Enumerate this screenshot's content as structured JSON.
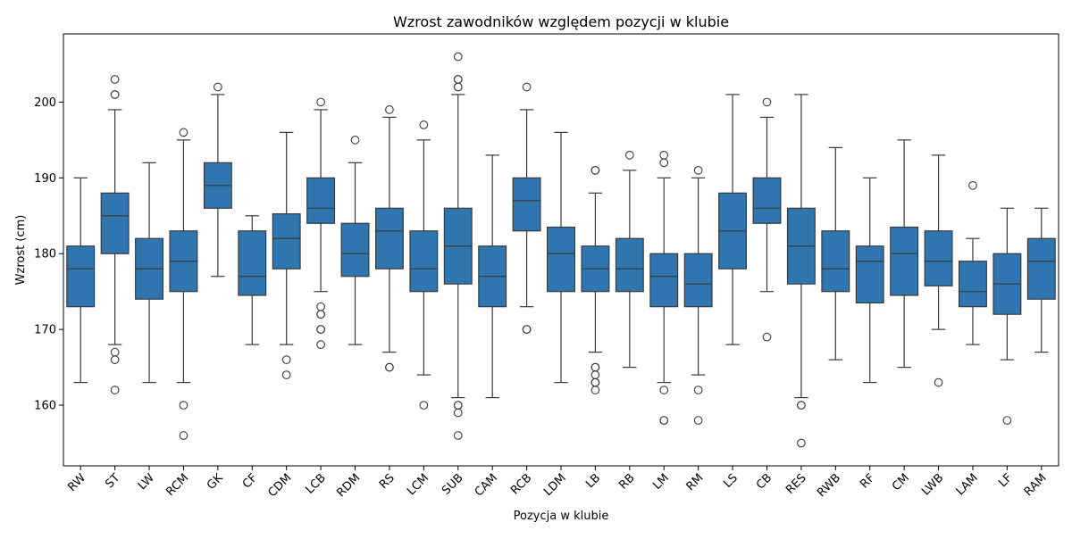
{
  "chart_data": {
    "type": "box",
    "title": "Wzrost zawodników  względem pozycji w klubie",
    "xlabel": "Pozycja w klubie",
    "ylabel": "Wzrost (cm)",
    "ylim": [
      152,
      209
    ],
    "yticks": [
      160,
      170,
      180,
      190,
      200
    ],
    "box_color": "#2f76b0",
    "line_color": "#3a3a3a",
    "categories": [
      "RW",
      "ST",
      "LW",
      "RCM",
      "GK",
      "CF",
      "CDM",
      "LCB",
      "RDM",
      "RS",
      "LCM",
      "SUB",
      "CAM",
      "RCB",
      "LDM",
      "LB",
      "RB",
      "LM",
      "RM",
      "LS",
      "CB",
      "RES",
      "RWB",
      "RF",
      "CM",
      "LWB",
      "LAM",
      "LF",
      "RAM"
    ],
    "boxes": [
      {
        "category": "RW",
        "whislo": 163,
        "q1": 173,
        "med": 178,
        "q3": 181,
        "whishi": 190,
        "fliers": []
      },
      {
        "category": "ST",
        "whislo": 168,
        "q1": 180,
        "med": 185,
        "q3": 188,
        "whishi": 199,
        "fliers": [
          167,
          166,
          162,
          201,
          201,
          203
        ]
      },
      {
        "category": "LW",
        "whislo": 163,
        "q1": 174,
        "med": 178,
        "q3": 182,
        "whishi": 192,
        "fliers": []
      },
      {
        "category": "RCM",
        "whislo": 163,
        "q1": 175,
        "med": 179,
        "q3": 183,
        "whishi": 195,
        "fliers": [
          160,
          156,
          196
        ]
      },
      {
        "category": "GK",
        "whislo": 177,
        "q1": 186,
        "med": 189,
        "q3": 192,
        "whishi": 201,
        "fliers": [
          202
        ]
      },
      {
        "category": "CF",
        "whislo": 168,
        "q1": 174.5,
        "med": 177,
        "q3": 183,
        "whishi": 185,
        "fliers": []
      },
      {
        "category": "CDM",
        "whislo": 168,
        "q1": 178,
        "med": 182,
        "q3": 185.25,
        "whishi": 196,
        "fliers": [
          166,
          164
        ]
      },
      {
        "category": "LCB",
        "whislo": 175,
        "q1": 184,
        "med": 186,
        "q3": 190,
        "whishi": 199,
        "fliers": [
          173,
          172,
          172,
          170,
          170,
          168,
          200
        ]
      },
      {
        "category": "RDM",
        "whislo": 168,
        "q1": 177,
        "med": 180,
        "q3": 184,
        "whishi": 192,
        "fliers": [
          195
        ]
      },
      {
        "category": "RS",
        "whislo": 167,
        "q1": 178,
        "med": 183,
        "q3": 186,
        "whishi": 198,
        "fliers": [
          165,
          165,
          199
        ]
      },
      {
        "category": "LCM",
        "whislo": 164,
        "q1": 175,
        "med": 178,
        "q3": 183,
        "whishi": 195,
        "fliers": [
          160,
          197
        ]
      },
      {
        "category": "SUB",
        "whislo": 161,
        "q1": 176,
        "med": 181,
        "q3": 186,
        "whishi": 201,
        "fliers": [
          160,
          160,
          159,
          156,
          202,
          202,
          203,
          203,
          206
        ]
      },
      {
        "category": "CAM",
        "whislo": 161,
        "q1": 173,
        "med": 177,
        "q3": 181,
        "whishi": 193,
        "fliers": []
      },
      {
        "category": "RCB",
        "whislo": 173,
        "q1": 183,
        "med": 187,
        "q3": 190,
        "whishi": 199,
        "fliers": [
          170,
          170,
          202
        ]
      },
      {
        "category": "LDM",
        "whislo": 163,
        "q1": 175,
        "med": 180,
        "q3": 183.5,
        "whishi": 196,
        "fliers": []
      },
      {
        "category": "LB",
        "whislo": 167,
        "q1": 175,
        "med": 178,
        "q3": 181,
        "whishi": 188,
        "fliers": [
          165,
          165,
          164,
          163,
          163,
          162,
          191,
          191
        ]
      },
      {
        "category": "RB",
        "whislo": 165,
        "q1": 175,
        "med": 178,
        "q3": 182,
        "whishi": 191,
        "fliers": [
          193
        ]
      },
      {
        "category": "LM",
        "whislo": 163,
        "q1": 173,
        "med": 177,
        "q3": 180,
        "whishi": 190,
        "fliers": [
          162,
          158,
          158,
          192,
          193
        ]
      },
      {
        "category": "RM",
        "whislo": 164,
        "q1": 173,
        "med": 176,
        "q3": 180,
        "whishi": 190,
        "fliers": [
          162,
          158,
          191
        ]
      },
      {
        "category": "LS",
        "whislo": 168,
        "q1": 178,
        "med": 183,
        "q3": 188,
        "whishi": 201,
        "fliers": []
      },
      {
        "category": "CB",
        "whislo": 175,
        "q1": 184,
        "med": 186,
        "q3": 190,
        "whishi": 198,
        "fliers": [
          169,
          200
        ]
      },
      {
        "category": "RES",
        "whislo": 161,
        "q1": 176,
        "med": 181,
        "q3": 186,
        "whishi": 201,
        "fliers": [
          160,
          160,
          155
        ]
      },
      {
        "category": "RWB",
        "whislo": 166,
        "q1": 175,
        "med": 178,
        "q3": 183,
        "whishi": 194,
        "fliers": []
      },
      {
        "category": "RF",
        "whislo": 163,
        "q1": 173.5,
        "med": 179,
        "q3": 181,
        "whishi": 190,
        "fliers": []
      },
      {
        "category": "CM",
        "whislo": 165,
        "q1": 174.5,
        "med": 180,
        "q3": 183.5,
        "whishi": 195,
        "fliers": []
      },
      {
        "category": "LWB",
        "whislo": 170,
        "q1": 175.75,
        "med": 179,
        "q3": 183,
        "whishi": 193,
        "fliers": [
          163
        ]
      },
      {
        "category": "LAM",
        "whislo": 168,
        "q1": 173,
        "med": 175,
        "q3": 179,
        "whishi": 182,
        "fliers": [
          189
        ]
      },
      {
        "category": "LF",
        "whislo": 166,
        "q1": 172,
        "med": 176,
        "q3": 180,
        "whishi": 186,
        "fliers": [
          158
        ]
      },
      {
        "category": "RAM",
        "whislo": 167,
        "q1": 174,
        "med": 179,
        "q3": 182,
        "whishi": 186,
        "fliers": []
      }
    ]
  }
}
